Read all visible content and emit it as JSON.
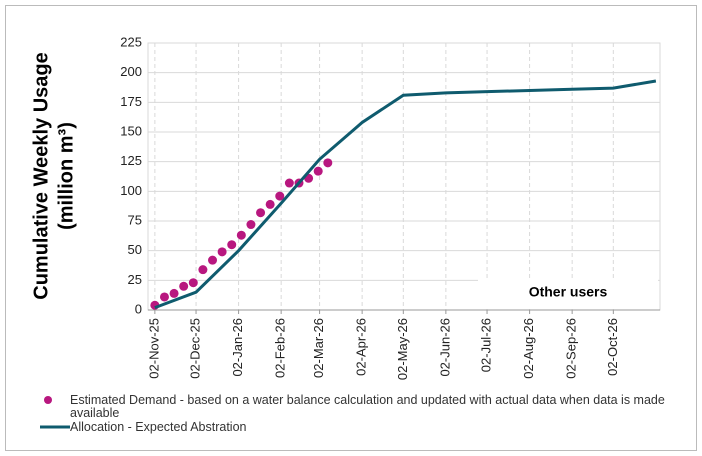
{
  "chart_data": {
    "type": "line",
    "y_label": [
      "Cumulative Weekly Usage",
      "(million m³)"
    ],
    "annotation": "Other users",
    "xlim": [
      "2025-10-28",
      "2026-11-05"
    ],
    "xticks": [
      {
        "value": "2025-11-02",
        "label": "02-Nov-25"
      },
      {
        "value": "2025-12-02",
        "label": "02-Dec-25"
      },
      {
        "value": "2026-01-02",
        "label": "02-Jan-26"
      },
      {
        "value": "2026-02-02",
        "label": "02-Feb-26"
      },
      {
        "value": "2026-03-02",
        "label": "02-Mar-26"
      },
      {
        "value": "2026-04-02",
        "label": "02-Apr-26"
      },
      {
        "value": "2026-05-02",
        "label": "02-May-26"
      },
      {
        "value": "2026-06-02",
        "label": "02-Jun-26"
      },
      {
        "value": "2026-07-02",
        "label": "02-Jul-26"
      },
      {
        "value": "2026-08-02",
        "label": "02-Aug-26"
      },
      {
        "value": "2026-09-02",
        "label": "02-Sep-26"
      },
      {
        "value": "2026-10-02",
        "label": "02-Oct-26"
      }
    ],
    "ylim": [
      0,
      225
    ],
    "yticks": [
      0,
      25,
      50,
      75,
      100,
      125,
      150,
      175,
      200,
      225
    ],
    "grid": true,
    "legend": "bottom",
    "series": [
      {
        "name": "Estimated Demand - based on a water balance calculation and updated with actual data when data is made available",
        "style": "markers",
        "color": "#b8177f",
        "x": [
          "2025-11-02",
          "2025-11-09",
          "2025-11-16",
          "2025-11-23",
          "2025-11-30",
          "2025-12-07",
          "2025-12-14",
          "2025-12-21",
          "2025-12-28",
          "2026-01-04",
          "2026-01-11",
          "2026-01-18",
          "2026-01-25",
          "2026-02-01",
          "2026-02-08",
          "2026-02-15",
          "2026-02-22",
          "2026-03-01",
          "2026-03-08"
        ],
        "values": [
          4,
          11,
          14,
          20,
          23,
          34,
          42,
          49,
          55,
          63,
          72,
          82,
          89,
          96,
          107,
          107,
          111,
          117,
          124
        ]
      },
      {
        "name": "Allocation - Expected Abstration",
        "style": "line",
        "color": "#0f5b6e",
        "x": [
          "2025-11-02",
          "2025-12-02",
          "2026-01-02",
          "2026-02-02",
          "2026-03-02",
          "2026-04-02",
          "2026-05-02",
          "2026-06-02",
          "2026-07-02",
          "2026-08-02",
          "2026-09-02",
          "2026-10-02",
          "2026-11-02"
        ],
        "values": [
          2,
          15,
          50,
          90,
          127,
          158,
          181,
          183,
          184,
          185,
          186,
          187,
          193
        ]
      }
    ]
  }
}
